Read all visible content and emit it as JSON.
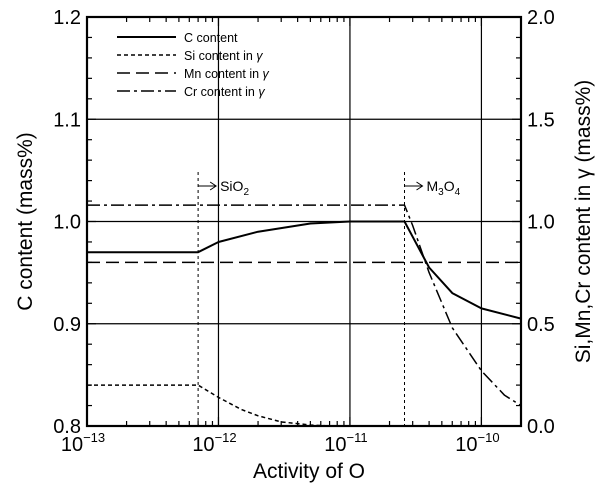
{
  "chart_data": {
    "type": "line",
    "xlabel": "Activity of O",
    "ylabel_left": "C content (mass%)",
    "ylabel_right": "Si,Mn,Cr content in γ (mass%)",
    "x_scale": "log",
    "xlim": [
      1e-13,
      2e-10
    ],
    "ylim_left": [
      0.8,
      1.2
    ],
    "ylim_right": [
      0.0,
      2.0
    ],
    "x_ticks": [
      {
        "base": "10",
        "exp": "−13",
        "value": 1e-13
      },
      {
        "base": "10",
        "exp": "−12",
        "value": 1e-12
      },
      {
        "base": "10",
        "exp": "−11",
        "value": 1e-11
      },
      {
        "base": "10",
        "exp": "−10",
        "value": 1e-10
      }
    ],
    "y_ticks_left": [
      "0.8",
      "0.9",
      "1.0",
      "1.1",
      "1.2"
    ],
    "y_ticks_right": [
      "0.0",
      "0.5",
      "1.0",
      "1.5",
      "2.0"
    ],
    "grid": "major",
    "legend_position": "top-left",
    "legend": [
      {
        "label": "C content",
        "suffix": "",
        "dash": "solid"
      },
      {
        "label": "Si content in ",
        "suffix": "γ",
        "dash": "dotted"
      },
      {
        "label": "Mn content in ",
        "suffix": "γ",
        "dash": "dashed"
      },
      {
        "label": "Cr content in ",
        "suffix": "γ",
        "dash": "dashdot"
      }
    ],
    "annotations": [
      {
        "prefix": "SiO",
        "subscript": "2",
        "x": 7e-13
      },
      {
        "prefix": "M",
        "subscript": "3",
        "suffix": "O",
        "subscript2": "4",
        "x": 2.6e-11
      }
    ],
    "series": [
      {
        "name": "C content",
        "axis": "left",
        "dash": "solid",
        "x": [
          1e-13,
          7e-13,
          1e-12,
          2e-12,
          5e-12,
          1e-11,
          2.6e-11,
          3e-11,
          4e-11,
          6e-11,
          1e-10,
          2e-10
        ],
        "y": [
          0.97,
          0.97,
          0.98,
          0.99,
          0.998,
          1.0,
          1.0,
          0.985,
          0.955,
          0.93,
          0.915,
          0.905
        ]
      },
      {
        "name": "Si content in γ",
        "axis": "right",
        "dash": "dotted",
        "x": [
          1e-13,
          7e-13,
          1e-12,
          1.5e-12,
          2e-12,
          3e-12,
          5e-12,
          7e-12,
          1e-11
        ],
        "y": [
          0.2,
          0.2,
          0.14,
          0.08,
          0.05,
          0.02,
          0.005,
          0.0,
          0.0
        ]
      },
      {
        "name": "Mn content in γ",
        "axis": "right",
        "dash": "dashed",
        "x": [
          1e-13,
          2e-10
        ],
        "y": [
          0.8,
          0.8
        ]
      },
      {
        "name": "Cr content in γ",
        "axis": "right",
        "dash": "dashdot",
        "x": [
          1e-13,
          2.6e-11,
          3e-11,
          4e-11,
          6e-11,
          1e-10,
          1.5e-10,
          2e-10
        ],
        "y": [
          1.08,
          1.08,
          0.98,
          0.75,
          0.48,
          0.27,
          0.15,
          0.1
        ]
      }
    ]
  }
}
